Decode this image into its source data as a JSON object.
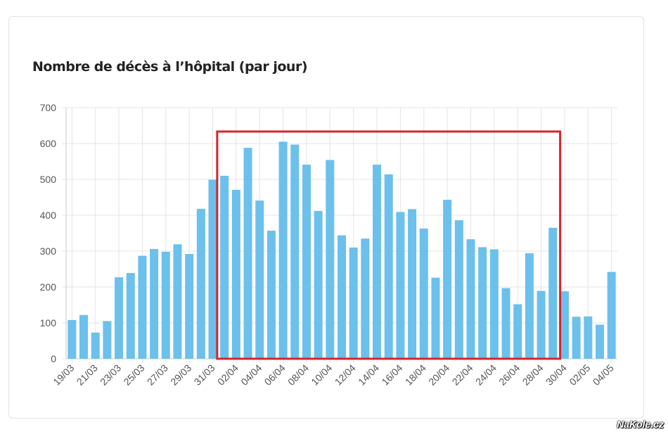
{
  "chart_data": {
    "type": "bar",
    "title": "Nombre de décès à l’hôpital (par jour)",
    "xlabel": "",
    "ylabel": "",
    "ylim": [
      0,
      700
    ],
    "yticks": [
      0,
      100,
      200,
      300,
      400,
      500,
      600,
      700
    ],
    "categories": [
      "19/03",
      "20/03",
      "21/03",
      "22/03",
      "23/03",
      "24/03",
      "25/03",
      "26/03",
      "27/03",
      "28/03",
      "29/03",
      "30/03",
      "31/03",
      "01/04",
      "02/04",
      "03/04",
      "04/04",
      "05/04",
      "06/04",
      "07/04",
      "08/04",
      "09/04",
      "10/04",
      "11/04",
      "12/04",
      "13/04",
      "14/04",
      "15/04",
      "16/04",
      "17/04",
      "18/04",
      "19/04",
      "20/04",
      "21/04",
      "22/04",
      "23/04",
      "24/04",
      "25/04",
      "26/04",
      "27/04",
      "28/04",
      "29/04",
      "30/04",
      "01/05",
      "02/05",
      "03/05",
      "04/05"
    ],
    "xtick_labels": [
      "19/03",
      "21/03",
      "23/03",
      "25/03",
      "27/03",
      "29/03",
      "31/03",
      "02/04",
      "04/04",
      "06/04",
      "08/04",
      "10/04",
      "12/04",
      "14/04",
      "16/04",
      "18/04",
      "20/04",
      "22/04",
      "24/04",
      "26/04",
      "28/04",
      "30/04",
      "02/05",
      "04/05"
    ],
    "values": [
      108,
      122,
      73,
      105,
      227,
      239,
      287,
      306,
      298,
      319,
      292,
      418,
      499,
      510,
      471,
      588,
      441,
      357,
      605,
      597,
      541,
      412,
      554,
      344,
      310,
      335,
      541,
      514,
      409,
      417,
      363,
      226,
      443,
      386,
      333,
      311,
      305,
      197,
      152,
      294,
      189,
      365,
      188,
      117,
      118,
      95,
      242
    ],
    "bar_color": "#6cc0ec",
    "grid": true,
    "highlight": {
      "from": "01/04",
      "to": "29/04",
      "color": "#d9232a"
    }
  },
  "watermark": "NaKole.cz"
}
